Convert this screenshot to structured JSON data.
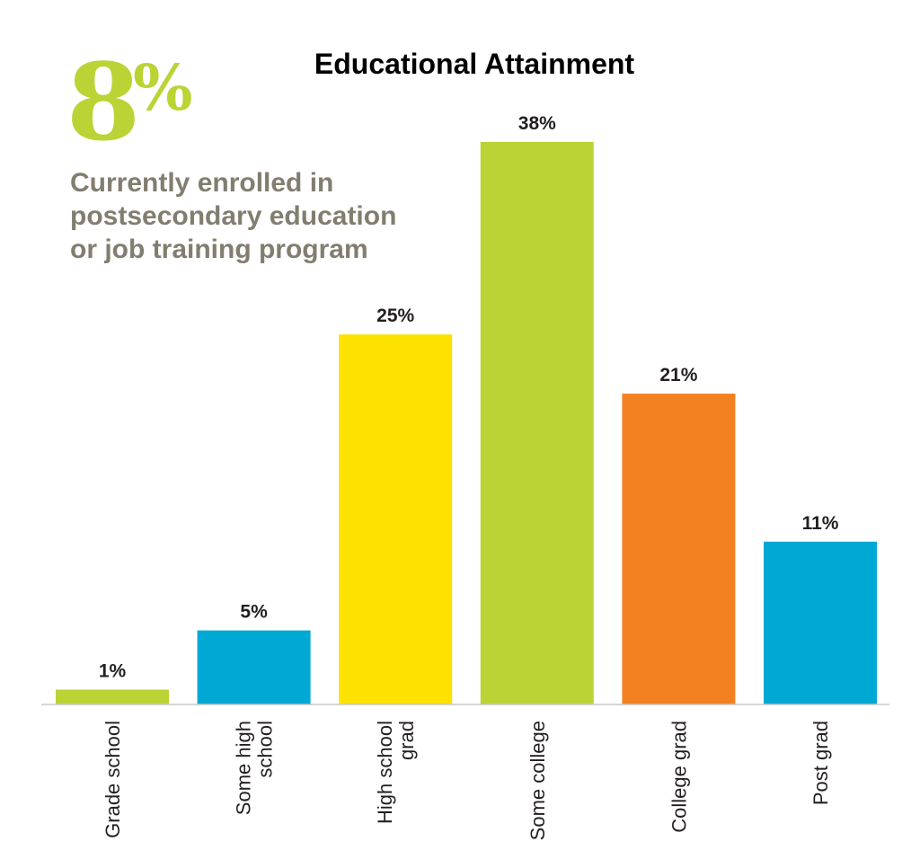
{
  "stat": {
    "value": "8",
    "unit": "%",
    "caption_lines": [
      "Currently enrolled in",
      "postsecondary education",
      "or job training program"
    ],
    "value_color": "#bbd334",
    "caption_color": "#837d70"
  },
  "chart_data": {
    "type": "bar",
    "title": "Educational Attainment",
    "xlabel": "",
    "ylabel": "",
    "ylim": [
      0,
      40
    ],
    "grid": false,
    "categories": [
      [
        "Grade school"
      ],
      [
        "Some high",
        "school"
      ],
      [
        "High school",
        "grad"
      ],
      [
        "Some college"
      ],
      [
        "College grad"
      ],
      [
        "Post grad"
      ]
    ],
    "values": [
      1,
      5,
      25,
      38,
      21,
      11
    ],
    "data_labels": [
      "1%",
      "5%",
      "25%",
      "38%",
      "21%",
      "11%"
    ],
    "colors": [
      "#bbd334",
      "#00a8d4",
      "#fde200",
      "#bbd334",
      "#f38121",
      "#00a8d4"
    ],
    "axis_color": "#c8c8c8",
    "label_color": "#231f20"
  }
}
